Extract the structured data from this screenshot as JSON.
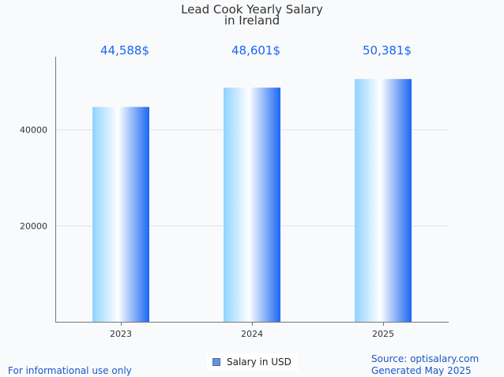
{
  "chart_data": {
    "type": "bar",
    "title": "Lead Cook Yearly Salary",
    "subtitle": "in Ireland",
    "categories": [
      "2023",
      "2024",
      "2025"
    ],
    "series": [
      {
        "name": "Salary in USD",
        "values": [
          44588,
          48601,
          50381
        ],
        "value_labels": [
          "44,588$",
          "48,601$",
          "50,381$"
        ]
      }
    ],
    "xlabel": "",
    "ylabel": "",
    "y_ticks": [
      20000,
      40000
    ],
    "y_tick_labels": [
      "20000",
      "40000"
    ],
    "ylim": [
      0,
      55000
    ],
    "grid": true,
    "legend": "bottom-center"
  },
  "notes": {
    "left": "For informational use only",
    "source": "Source: optisalary.com",
    "generated": "Generated May 2025"
  },
  "colors": {
    "background": "#f9fafc",
    "bar_light": "#8fd3ff",
    "bar_mid": "#ffffff",
    "bar_dark": "#1a67f2",
    "value_label": "#1a67f2",
    "note_text": "#1a57c6"
  }
}
